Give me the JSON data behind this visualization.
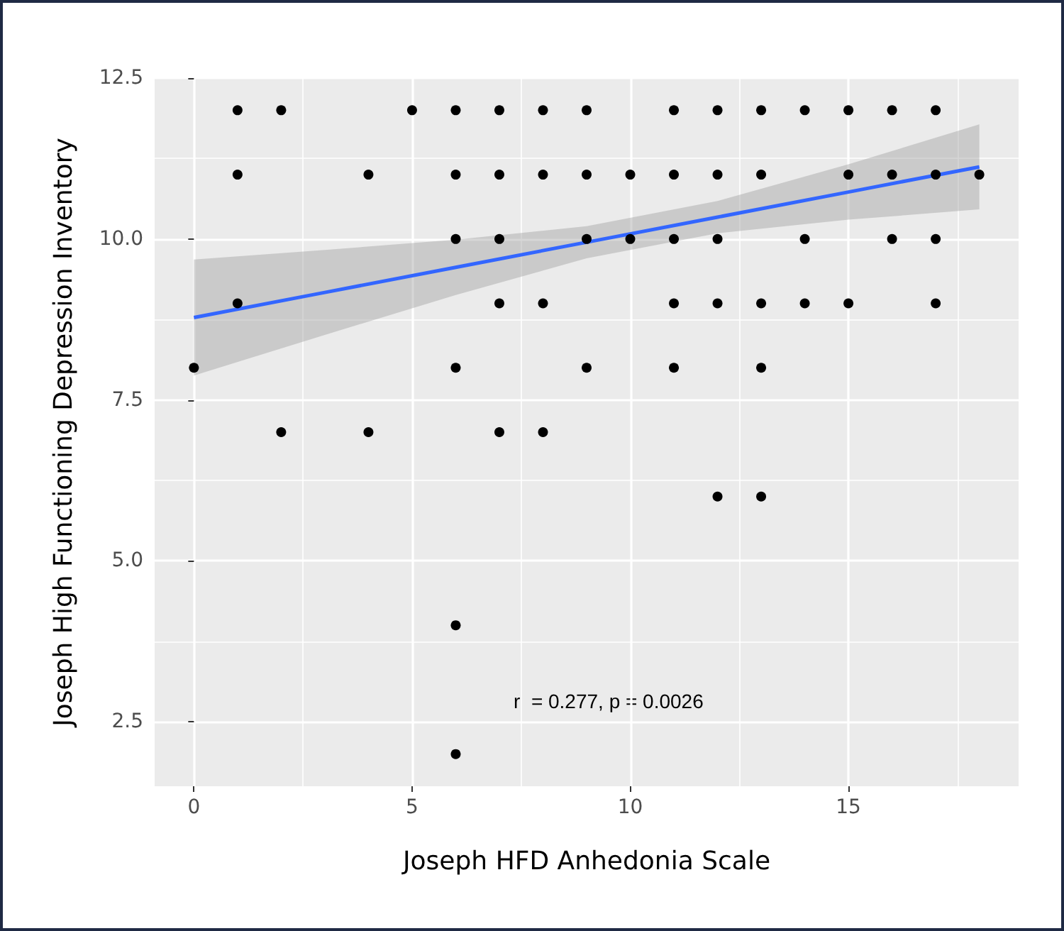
{
  "chart_data": {
    "type": "scatter",
    "xlabel": "Joseph HFD Anhedonia Scale",
    "ylabel": "Joseph High Functioning Depression Inventory",
    "xlim": [
      -0.9,
      18.9
    ],
    "ylim": [
      1.5,
      12.5
    ],
    "xticks": [
      0,
      5,
      10,
      15
    ],
    "yticks": [
      {
        "value": 2.5,
        "label": "2.5"
      },
      {
        "value": 5,
        "label": "5.0"
      },
      {
        "value": 7.5,
        "label": "7.5"
      },
      {
        "value": 10,
        "label": "10.0"
      },
      {
        "value": 12.5,
        "label": "12.5"
      }
    ],
    "grid": true,
    "marker": "circle",
    "annotations": [
      "r  = 0.277, p = 0.0026"
    ],
    "series": [
      {
        "color": "#000000",
        "x": [
          1,
          2,
          5,
          6,
          7,
          8,
          9,
          11,
          12,
          13,
          14,
          15,
          16,
          17,
          1,
          4,
          6,
          7,
          8,
          9,
          10,
          11,
          12,
          13,
          15,
          16,
          17,
          18,
          6,
          7,
          9,
          10,
          11,
          12,
          14,
          16,
          17,
          1,
          7,
          8,
          11,
          12,
          13,
          14,
          15,
          17,
          0,
          6,
          9,
          11,
          13,
          2,
          4,
          7,
          8,
          12,
          13,
          6,
          6
        ],
        "values": [
          12,
          12,
          12,
          12,
          12,
          12,
          12,
          12,
          12,
          12,
          12,
          12,
          12,
          12,
          11,
          11,
          11,
          11,
          11,
          11,
          11,
          11,
          11,
          11,
          11,
          11,
          11,
          11,
          10,
          10,
          10,
          10,
          10,
          10,
          10,
          10,
          10,
          9,
          9,
          9,
          9,
          9,
          9,
          9,
          9,
          9,
          8,
          8,
          8,
          8,
          8,
          7,
          7,
          7,
          7,
          6,
          6,
          4,
          2
        ]
      },
      {
        "type": "line",
        "color": "#3366ff",
        "line_style": "solid",
        "marker": "none",
        "x": [
          0,
          3,
          6,
          9,
          12,
          15,
          18
        ],
        "values": [
          8.78,
          9.17,
          9.56,
          9.95,
          10.34,
          10.73,
          11.12
        ],
        "lower": [
          7.88,
          8.51,
          9.13,
          9.7,
          10.09,
          10.3,
          10.46
        ],
        "upper": [
          9.68,
          9.83,
          9.99,
          10.2,
          10.59,
          11.16,
          11.78
        ]
      }
    ]
  }
}
